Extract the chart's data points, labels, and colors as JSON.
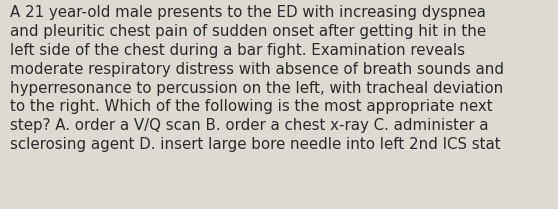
{
  "text": "A 21 year-old male presents to the ED with increasing dyspnea and pleuritic chest pain of sudden onset after getting hit in the left side of the chest during a bar fight. Examination reveals moderate respiratory distress with absence of breath sounds and hyperresonance to percussion on the left, with tracheal deviation to the right. Which of the following is the most appropriate next step? A. order a V/Q scan B. order a chest x-ray C. administer a sclerosing agent D. insert large bore needle into left 2nd ICS stat",
  "lines": [
    "A 21 year-old male presents to the ED with increasing dyspnea",
    "and pleuritic chest pain of sudden onset after getting hit in the",
    "left side of the chest during a bar fight. Examination reveals",
    "moderate respiratory distress with absence of breath sounds and",
    "hyperresonance to percussion on the left, with tracheal deviation",
    "to the right. Which of the following is the most appropriate next",
    "step? A. order a V/Q scan B. order a chest x-ray C. administer a",
    "sclerosing agent D. insert large bore needle into left 2nd ICS stat"
  ],
  "background_color": "#dedad2",
  "text_color": "#2a2a2a",
  "font_size": 10.8,
  "fig_width": 5.58,
  "fig_height": 2.09,
  "dpi": 100
}
